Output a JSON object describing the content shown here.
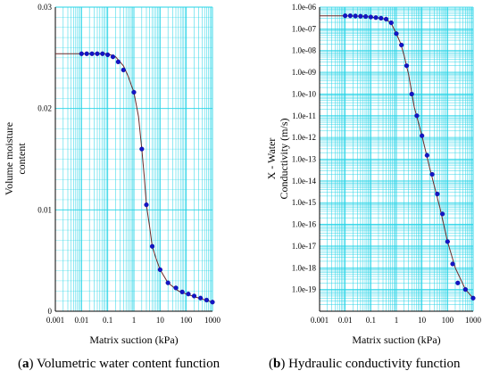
{
  "chart_data": [
    {
      "type": "line",
      "caption_letter": "a",
      "caption_text": "Volumetric water content function",
      "xlabel": "Matrix suction (kPa)",
      "ylabel": [
        "Volume moisture",
        "content"
      ],
      "xscale": "log",
      "yscale": "linear",
      "xlim": [
        0.001,
        1000
      ],
      "ylim": [
        0,
        0.03
      ],
      "x_ticks": [
        "0.001",
        "0.01",
        "0.1",
        "1",
        "10",
        "100",
        "1000"
      ],
      "y_ticks": [
        {
          "value": 0,
          "label": "0"
        },
        {
          "value": 0.01,
          "label": "0.01"
        },
        {
          "value": 0.02,
          "label": "0.02"
        },
        {
          "value": 0.03,
          "label": "0.03"
        }
      ],
      "grid": true,
      "colors": {
        "grid": "#22d3e6",
        "line": "#6b2a2a",
        "marker": "#1414c8"
      },
      "curve": [
        [
          0.001,
          0.0254
        ],
        [
          0.01,
          0.0254
        ],
        [
          0.1,
          0.0254
        ],
        [
          0.2,
          0.0251
        ],
        [
          0.4,
          0.0242
        ],
        [
          0.6,
          0.0232
        ],
        [
          1.0,
          0.0216
        ],
        [
          1.5,
          0.0192
        ],
        [
          2.0,
          0.016
        ],
        [
          2.5,
          0.0132
        ],
        [
          3.0,
          0.0105
        ],
        [
          4.0,
          0.0083
        ],
        [
          5.0,
          0.0064
        ],
        [
          7.0,
          0.0052
        ],
        [
          10.0,
          0.0041
        ],
        [
          20.0,
          0.0028
        ],
        [
          50.0,
          0.002
        ],
        [
          100.0,
          0.0017
        ],
        [
          300.0,
          0.0013
        ],
        [
          1000.0,
          0.0009
        ]
      ],
      "points": [
        [
          0.01,
          0.0254
        ],
        [
          0.0158,
          0.0254
        ],
        [
          0.0251,
          0.0254
        ],
        [
          0.0398,
          0.0254
        ],
        [
          0.063,
          0.0254
        ],
        [
          0.1,
          0.0253
        ],
        [
          0.158,
          0.0251
        ],
        [
          0.251,
          0.0246
        ],
        [
          0.398,
          0.0238
        ],
        [
          1.0,
          0.0216
        ],
        [
          2.0,
          0.016
        ],
        [
          3.0,
          0.0105
        ],
        [
          5.0,
          0.0064
        ],
        [
          10.0,
          0.0041
        ],
        [
          20.0,
          0.0028
        ],
        [
          40.0,
          0.0023
        ],
        [
          70.0,
          0.0019
        ],
        [
          120.0,
          0.0017
        ],
        [
          200.0,
          0.0015
        ],
        [
          350.0,
          0.0013
        ],
        [
          600.0,
          0.0011
        ],
        [
          1000.0,
          0.0009
        ]
      ]
    },
    {
      "type": "line",
      "caption_letter": "b",
      "caption_text": "Hydraulic conductivity function",
      "xlabel": "Matrix suction (kPa)",
      "ylabel": [
        "X - Water",
        "Conductivity (m/s)"
      ],
      "xscale": "log",
      "yscale": "log",
      "xlim": [
        0.001,
        1000
      ],
      "ylim": [
        1e-20,
        1e-06
      ],
      "x_ticks": [
        "0.001",
        "0.01",
        "0.1",
        "1",
        "10",
        "100",
        "1000"
      ],
      "y_ticks": [
        {
          "value": 1e-06,
          "label": "1.0e-06"
        },
        {
          "value": 1e-07,
          "label": "1.0e-07"
        },
        {
          "value": 1e-08,
          "label": "1.0e-08"
        },
        {
          "value": 1e-09,
          "label": "1.0e-09"
        },
        {
          "value": 1e-10,
          "label": "1.0e-10"
        },
        {
          "value": 1e-11,
          "label": "1.0e-11"
        },
        {
          "value": 1e-12,
          "label": "1.0e-12"
        },
        {
          "value": 1e-13,
          "label": "1.0e-13"
        },
        {
          "value": 1e-14,
          "label": "1.0e-14"
        },
        {
          "value": 1e-15,
          "label": "1.0e-15"
        },
        {
          "value": 1e-16,
          "label": "1.0e-16"
        },
        {
          "value": 1e-17,
          "label": "1.0e-17"
        },
        {
          "value": 1e-18,
          "label": "1.0e-18"
        },
        {
          "value": 1e-19,
          "label": "1.0e-19"
        }
      ],
      "grid": true,
      "colors": {
        "grid": "#22d3e6",
        "line": "#6b2a2a",
        "marker": "#1414c8"
      },
      "curve": [
        [
          0.001,
          4e-07
        ],
        [
          0.01,
          4e-07
        ],
        [
          0.05,
          3.8e-07
        ],
        [
          0.1,
          3.5e-07
        ],
        [
          0.3,
          3e-07
        ],
        [
          0.6,
          2e-07
        ],
        [
          1.0,
          6e-08
        ],
        [
          1.5,
          2e-08
        ],
        [
          2.0,
          6e-09
        ],
        [
          3.0,
          8e-10
        ],
        [
          5.0,
          2.5e-11
        ],
        [
          10.0,
          1.2e-12
        ],
        [
          20.0,
          4e-14
        ],
        [
          50.0,
          6e-16
        ],
        [
          100.0,
          1.6e-17
        ],
        [
          200.0,
          1e-18
        ],
        [
          500.0,
          1e-19
        ],
        [
          1000.0,
          4e-20
        ]
      ],
      "points": [
        [
          0.01,
          4e-07
        ],
        [
          0.0158,
          4e-07
        ],
        [
          0.0251,
          3.9e-07
        ],
        [
          0.0398,
          3.8e-07
        ],
        [
          0.063,
          3.7e-07
        ],
        [
          0.1,
          3.5e-07
        ],
        [
          0.158,
          3.3e-07
        ],
        [
          0.251,
          3.1e-07
        ],
        [
          0.398,
          2.8e-07
        ],
        [
          0.63,
          1.9e-07
        ],
        [
          1.0,
          6e-08
        ],
        [
          1.58,
          1.8e-08
        ],
        [
          2.51,
          2e-09
        ],
        [
          3.98,
          1e-10
        ],
        [
          6.3,
          1e-11
        ],
        [
          10.0,
          1.2e-12
        ],
        [
          15.8,
          1.5e-13
        ],
        [
          25.1,
          2e-14
        ],
        [
          39.8,
          2.5e-15
        ],
        [
          63.0,
          3e-16
        ],
        [
          100.0,
          1.6e-17
        ],
        [
          158.0,
          1.5e-18
        ],
        [
          251.0,
          2e-19
        ],
        [
          500.0,
          1e-19
        ],
        [
          1000.0,
          4e-20
        ]
      ]
    }
  ]
}
